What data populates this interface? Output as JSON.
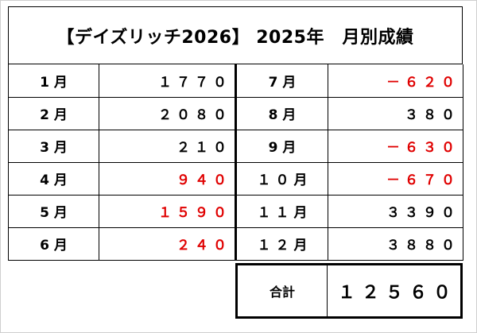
{
  "title": "【デイズリッチ2026】 2025年　月別成績",
  "rows": [
    {
      "left_month": "1月",
      "left_value": "１７７０",
      "right_month": "7月",
      "right_value": "－６２０"
    },
    {
      "left_month": "2月",
      "left_value": "２０８０",
      "right_month": "8月",
      "right_value": "３８０"
    },
    {
      "left_month": "3月",
      "left_value": "２１０",
      "right_month": "9月",
      "right_value": "－６３０"
    },
    {
      "left_month": "4月",
      "left_value": "９４０",
      "right_month": "１０月",
      "right_value": "－６７０"
    },
    {
      "left_month": "5月",
      "left_value": "１５９０",
      "right_month": "１１月",
      "right_value": "３３９０"
    },
    {
      "left_month": "6月",
      "left_value": "２４０",
      "right_month": "１２月",
      "right_value": "３８８０"
    }
  ],
  "total": {
    "label": "合計",
    "value": "１２５６０"
  },
  "colors": {
    "text": "#000000",
    "highlight_red": "#e00000"
  }
}
